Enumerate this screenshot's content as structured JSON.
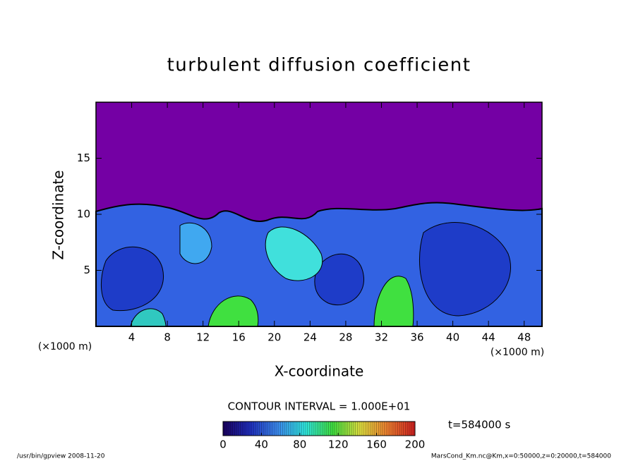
{
  "chart_data": {
    "type": "contour",
    "title": "turbulent diffusion coefficient",
    "xlabel": "X-coordinate",
    "ylabel": "Z-coordinate",
    "axis_unit": "(×1000 m)",
    "xlim": [
      0,
      50
    ],
    "ylim": [
      0,
      20
    ],
    "xticks": [
      4,
      8,
      12,
      16,
      20,
      24,
      28,
      32,
      36,
      40,
      44,
      48
    ],
    "yticks": [
      5,
      10,
      15
    ],
    "contour_interval": "CONTOUR INTERVAL = 1.000E+01",
    "time_label": "t=584000 s",
    "colorbar": {
      "lim": [
        0,
        200
      ],
      "ticks": [
        0,
        40,
        80,
        120,
        160,
        200
      ],
      "colors": [
        "#1a0060",
        "#2030c0",
        "#3c8cf0",
        "#30e8e0",
        "#40e040",
        "#e0e040",
        "#f08030",
        "#d02020"
      ]
    },
    "footer_left": "/usr/bin/gpview  2008-11-20",
    "footer_right": "MarsCond_Km.nc@Km,x=0:50000,z=0:20000,t=584000"
  }
}
